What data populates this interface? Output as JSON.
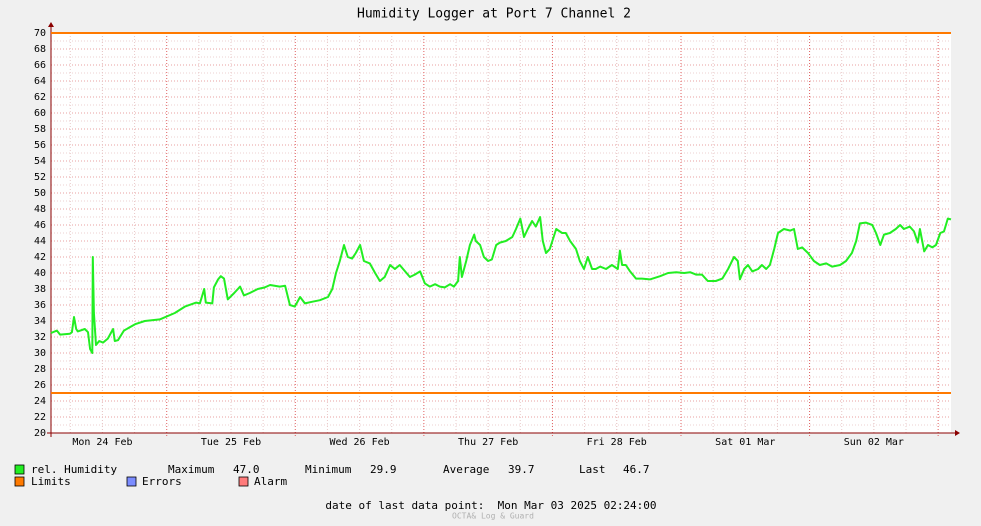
{
  "chart_data": {
    "type": "line",
    "title": "Humidity Logger at Port 7 Channel 2",
    "x": [
      0,
      1.1,
      1.7,
      3.5,
      3.9,
      4.3,
      4.7,
      5.0,
      6.3,
      6.9,
      7.3,
      7.7,
      7.8,
      8.0,
      8.4,
      9.0,
      9.7,
      10.6,
      11.6,
      11.9,
      12.5,
      13.6,
      15.7,
      17.5,
      20.3,
      23.1,
      25.0,
      27.1,
      27.8,
      28.6,
      28.9,
      30.1,
      30.4,
      31.2,
      31.7,
      32.3,
      33.0,
      34.2,
      35.3,
      36.0,
      37.1,
      38.6,
      39.9,
      40.9,
      42.7,
      43.7,
      44.6,
      45.5,
      46.5,
      47.4,
      48.7,
      50.2,
      51.7,
      52.5,
      53.2,
      53.9,
      54.7,
      55.4,
      56.2,
      56.9,
      57.7,
      58.4,
      59.5,
      60.5,
      61.4,
      62.3,
      63.3,
      64.2,
      65.1,
      66.1,
      67.0,
      67.9,
      68.9,
      69.8,
      70.7,
      71.7,
      72.6,
      73.5,
      74.5,
      75.2,
      76.0,
      76.3,
      76.7,
      77.5,
      78.2,
      79.0,
      79.3,
      80.1,
      80.8,
      81.6,
      82.3,
      83.1,
      83.8,
      84.9,
      86.1,
      86.8,
      87.6,
      88.3,
      89.0,
      89.8,
      90.5,
      91.3,
      91.8,
      92.4,
      93.1,
      94.3,
      95.4,
      96.1,
      96.9,
      98.0,
      98.7,
      99.5,
      100.2,
      101.0,
      101.7,
      102.5,
      103.6,
      104.7,
      105.8,
      106.2,
      106.6,
      107.3,
      108.1,
      109.2,
      110.3,
      111.8,
      113.7,
      115.2,
      116.7,
      118.2,
      119.3,
      120.4,
      121.5,
      122.6,
      124.1,
      125.3,
      126.4,
      127.5,
      128.2,
      128.6,
      129.4,
      130.1,
      130.9,
      132.0,
      132.7,
      133.5,
      134.2,
      135.0,
      135.7,
      136.8,
      138.0,
      138.7,
      139.4,
      140.2,
      141.3,
      142.4,
      143.5,
      144.7,
      145.8,
      147.3,
      148.4,
      149.5,
      150.3,
      151.0,
      152.1,
      153.3,
      154.0,
      154.8,
      155.5,
      156.6,
      157.7,
      158.5,
      159.2,
      160.3,
      161.1,
      161.8,
      162.2,
      163.0,
      163.7,
      164.5,
      165.2,
      166.0,
      166.7,
      167.4,
      168.0
    ],
    "series": [
      {
        "name": "rel. Humidity",
        "color": "#22ee22",
        "values": [
          32.5,
          32.8,
          32.3,
          32.4,
          32.6,
          34.5,
          33.0,
          32.7,
          33.0,
          32.6,
          30.5,
          30.0,
          42.0,
          35,
          31.0,
          31.5,
          31.3,
          31.8,
          33.0,
          31.5,
          31.6,
          32.8,
          33.6,
          34.0,
          34.2,
          35.0,
          35.8,
          36.3,
          36.2,
          38.0,
          36.3,
          36.2,
          38.2,
          39.2,
          39.6,
          39.3,
          36.7,
          37.5,
          38.3,
          37.2,
          37.5,
          38.0,
          38.2,
          38.5,
          38.3,
          38.4,
          36.0,
          35.8,
          37.0,
          36.2,
          36.4,
          36.6,
          37.0,
          38.0,
          40.0,
          41.5,
          43.5,
          42.0,
          41.8,
          42.5,
          43.5,
          41.5,
          41.2,
          40.0,
          39.0,
          39.5,
          41.0,
          40.5,
          41.0,
          40.2,
          39.5,
          39.8,
          40.2,
          38.7,
          38.3,
          38.6,
          38.3,
          38.2,
          38.6,
          38.3,
          39.0,
          42.0,
          39.5,
          41.5,
          43.5,
          44.8,
          44.0,
          43.5,
          42.0,
          41.5,
          41.7,
          43.5,
          43.8,
          44.0,
          44.5,
          45.5,
          46.8,
          44.5,
          45.5,
          46.5,
          45.8,
          47.0,
          44.0,
          42.5,
          43.0,
          45.5,
          45.0,
          45.0,
          44.0,
          43.0,
          41.5,
          40.5,
          42.0,
          40.5,
          40.5,
          40.8,
          40.5,
          41.0,
          40.5,
          42.8,
          41.0,
          41.0,
          40.2,
          39.3,
          39.3,
          39.2,
          39.6,
          40.0,
          40.1,
          40.0,
          40.1,
          39.8,
          39.8,
          39.0,
          39.0,
          39.3,
          40.5,
          42.0,
          41.5,
          39.2,
          40.5,
          41.0,
          40.2,
          40.5,
          41.0,
          40.5,
          41.0,
          43.0,
          45.0,
          45.5,
          45.3,
          45.5,
          43.0,
          43.2,
          42.5,
          41.5,
          41.0,
          41.2,
          40.8,
          41.0,
          41.5,
          42.5,
          44.0,
          46.2,
          46.3,
          46.0,
          45.0,
          43.5,
          44.8,
          45.0,
          45.5,
          46.0,
          45.5,
          45.8,
          45.2,
          43.8,
          45.5,
          42.7,
          43.5,
          43.2,
          43.5,
          45.0,
          45.2,
          46.8,
          46.7
        ]
      }
    ],
    "limits": {
      "name": "Limits",
      "color": "#ff7a00",
      "values": [
        70,
        25
      ]
    },
    "legend_extra": [
      {
        "name": "Errors",
        "color": "#7b8cff"
      },
      {
        "name": "Alarm",
        "color": "#ff7b7b"
      }
    ],
    "stats": [
      {
        "name": "Maximum",
        "value": "47.0"
      },
      {
        "name": "Minimum",
        "value": "29.9"
      },
      {
        "name": "Average",
        "value": "39.7"
      },
      {
        "name": "Last",
        "value": "46.7"
      }
    ],
    "xlim": [
      0,
      168
    ],
    "xticks": [
      {
        "value": 9.6,
        "label": "Mon 24 Feb"
      },
      {
        "value": 33.6,
        "label": "Tue 25 Feb"
      },
      {
        "value": 57.6,
        "label": "Wed 26 Feb"
      },
      {
        "value": 81.6,
        "label": "Thu 27 Feb"
      },
      {
        "value": 105.6,
        "label": "Fri 28 Feb"
      },
      {
        "value": 129.6,
        "label": "Sat 01 Mar"
      },
      {
        "value": 153.6,
        "label": "Sun 02 Mar"
      }
    ],
    "ylim": [
      20,
      70
    ],
    "yticks": [
      20,
      22,
      24,
      26,
      28,
      30,
      32,
      34,
      36,
      38,
      40,
      42,
      44,
      46,
      48,
      50,
      52,
      54,
      56,
      58,
      60,
      62,
      64,
      66,
      68,
      70
    ],
    "grid": true
  },
  "footer": {
    "last_point": "date of last data point:  Mon Mar 03 2025 02:24:00",
    "watermark": "OCTA& Log & Guard"
  }
}
